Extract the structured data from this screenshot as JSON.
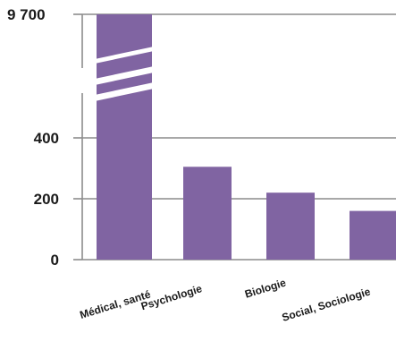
{
  "chart_data": {
    "type": "bar",
    "title": "",
    "xlabel": "",
    "ylabel": "",
    "axis_break": true,
    "bar_color": "#8064a2",
    "grid": true,
    "y_ticks": [
      {
        "value": 0,
        "label": "0"
      },
      {
        "value": 200,
        "label": "200"
      },
      {
        "value": 400,
        "label": "400"
      },
      {
        "value": 9700,
        "label": "9 700"
      }
    ],
    "categories": [
      "Médical, santé",
      "Psychologie",
      "Biologie",
      "Social, Sociologie"
    ],
    "values": [
      9700,
      305,
      220,
      160
    ]
  }
}
